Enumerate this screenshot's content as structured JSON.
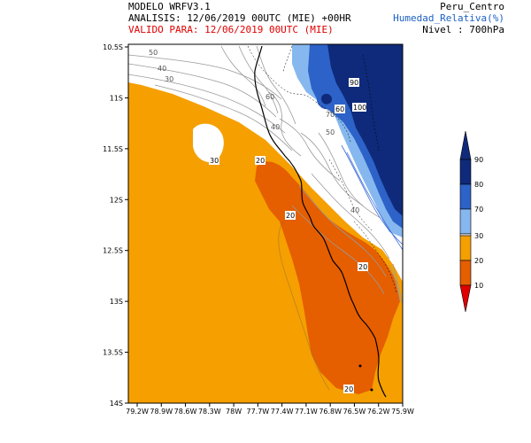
{
  "header": {
    "model": "MODELO WRFV3.1",
    "analysis": "ANALISIS: 12/06/2019 00UTC (MIE) +00HR",
    "valid": "VALIDO PARA: 12/06/2019 00UTC (MIE)",
    "region": "Peru_Centro",
    "variable": "Humedad_Relativa(%)",
    "level": "Nivel : 700hPa"
  },
  "axes": {
    "x_ticks": [
      "79.2W",
      "78.9W",
      "78.6W",
      "78.3W",
      "78W",
      "77.7W",
      "77.4W",
      "77.1W",
      "76.8W",
      "76.5W",
      "76.2W",
      "75.9W"
    ],
    "y_ticks": [
      "10.5S",
      "11S",
      "11.5S",
      "12S",
      "12.5S",
      "13S",
      "13.5S",
      "14S"
    ]
  },
  "colorbar": {
    "labels": [
      "90",
      "80",
      "70",
      "30",
      "20",
      "10"
    ],
    "colors": {
      "c90": "#0f2a7a",
      "c80": "#2d62c8",
      "c70": "#86b8ef",
      "c30": "#f59f00",
      "c20": "#e55e00",
      "c10": "#e00000"
    }
  },
  "contour_labels": [
    "50",
    "40",
    "30",
    "60",
    "90",
    "60",
    "100",
    "70",
    "40",
    "50",
    "30",
    "20",
    "20",
    "40",
    "20",
    "20"
  ],
  "colors": {
    "ocean": "#f59f00",
    "dry": "#e55e00",
    "land": "#ffffff",
    "moist1": "#86b8ef",
    "moist2": "#2d62c8",
    "moist3": "#0f2a7a"
  }
}
